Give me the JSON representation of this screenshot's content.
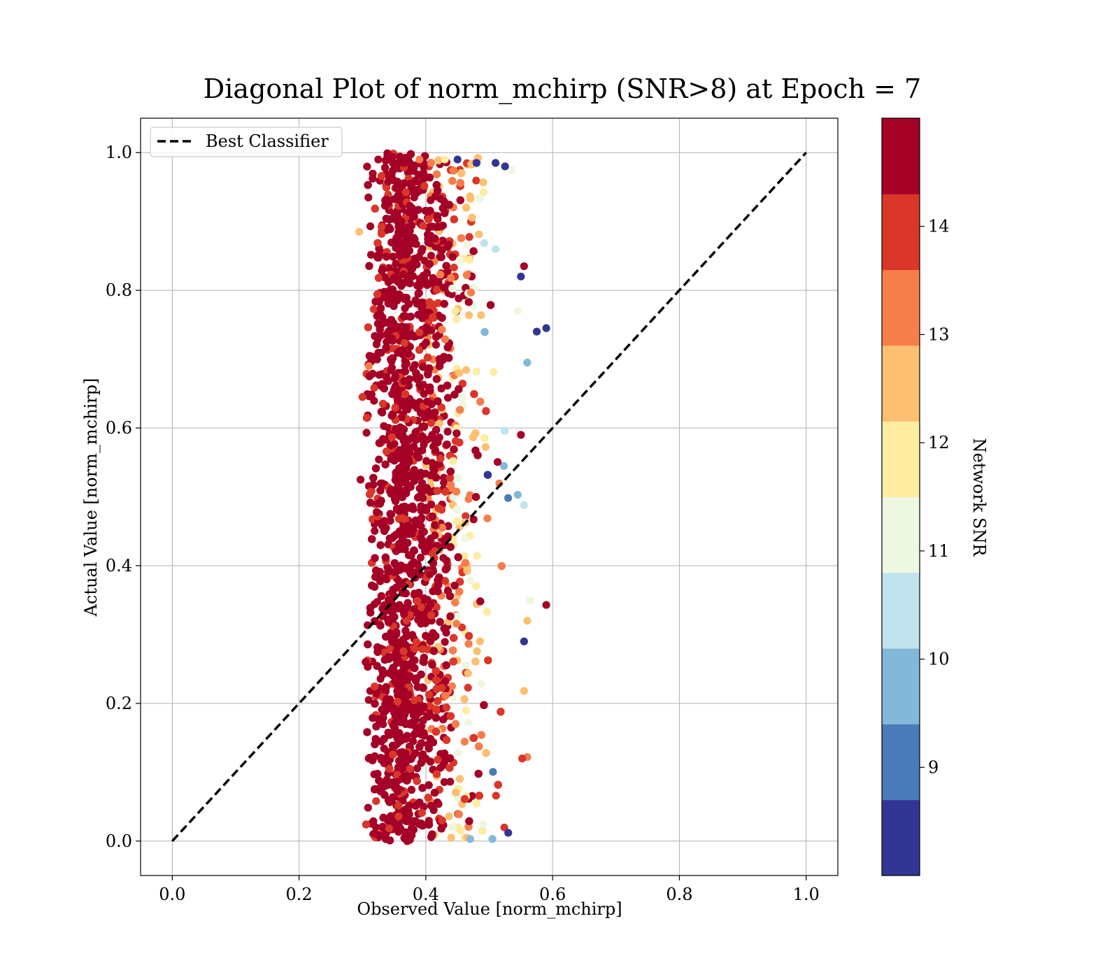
{
  "chart_data": {
    "type": "scatter",
    "title": "Diagonal Plot of norm_mchirp (SNR>8) at Epoch = 7",
    "xlabel": "Observed Value [norm_mchirp]",
    "ylabel": "Actual Value [norm_mchirp]",
    "xlim": [
      -0.05,
      1.05
    ],
    "ylim": [
      -0.05,
      1.05
    ],
    "x_ticks": [
      "0.0",
      "0.2",
      "0.4",
      "0.6",
      "0.8",
      "1.0"
    ],
    "y_ticks": [
      "0.0",
      "0.2",
      "0.4",
      "0.6",
      "0.8",
      "1.0"
    ],
    "grid": true,
    "legend": {
      "position": "upper-left",
      "entries": [
        "Best Classifier"
      ]
    },
    "reference_line": {
      "name": "Best Classifier",
      "style": "dashed",
      "color": "#000000",
      "x": [
        0.0,
        1.0
      ],
      "y": [
        0.0,
        1.0
      ]
    },
    "colorbar": {
      "label": "Network SNR",
      "range": [
        8.0,
        15.0
      ],
      "ticks": [
        "9",
        "10",
        "11",
        "12",
        "13",
        "14"
      ],
      "tick_values": [
        9,
        10,
        11,
        12,
        13,
        14
      ],
      "bins": 10,
      "colors": [
        "#313695",
        "#4a7ab7",
        "#84b8d8",
        "#c0e3ed",
        "#eef7e0",
        "#feeca0",
        "#fdbf71",
        "#f67e4b",
        "#da362a",
        "#a50026"
      ]
    },
    "points": [
      {
        "x": 0.325,
        "y": 0.99,
        "snr": 14.8
      },
      {
        "x": 0.36,
        "y": 0.99,
        "snr": 14.9
      },
      {
        "x": 0.39,
        "y": 0.99,
        "snr": 13.2
      },
      {
        "x": 0.43,
        "y": 0.99,
        "snr": 11.5
      },
      {
        "x": 0.45,
        "y": 0.99,
        "snr": 8.3
      },
      {
        "x": 0.48,
        "y": 0.985,
        "snr": 8.5
      },
      {
        "x": 0.51,
        "y": 0.985,
        "snr": 8.4
      },
      {
        "x": 0.525,
        "y": 0.98,
        "snr": 8.6
      },
      {
        "x": 0.59,
        "y": 0.745,
        "snr": 8.2
      },
      {
        "x": 0.575,
        "y": 0.74,
        "snr": 8.4
      },
      {
        "x": 0.56,
        "y": 0.695,
        "snr": 9.8
      },
      {
        "x": 0.555,
        "y": 0.835,
        "snr": 14.8
      },
      {
        "x": 0.55,
        "y": 0.82,
        "snr": 8.5
      },
      {
        "x": 0.545,
        "y": 0.77,
        "snr": 11.2
      },
      {
        "x": 0.59,
        "y": 0.343,
        "snr": 14.8
      },
      {
        "x": 0.565,
        "y": 0.35,
        "snr": 11.1
      },
      {
        "x": 0.56,
        "y": 0.32,
        "snr": 12.4
      },
      {
        "x": 0.555,
        "y": 0.29,
        "snr": 8.6
      },
      {
        "x": 0.56,
        "y": 0.122,
        "snr": 13.5
      },
      {
        "x": 0.552,
        "y": 0.12,
        "snr": 14.2
      },
      {
        "x": 0.555,
        "y": 0.218,
        "snr": 12.5
      },
      {
        "x": 0.555,
        "y": 0.488,
        "snr": 10.5
      },
      {
        "x": 0.55,
        "y": 0.59,
        "snr": 14.8
      },
      {
        "x": 0.545,
        "y": 0.503,
        "snr": 9.5
      },
      {
        "x": 0.3,
        "y": 0.645,
        "snr": 13.7
      },
      {
        "x": 0.297,
        "y": 0.525,
        "snr": 14.8
      },
      {
        "x": 0.295,
        "y": 0.885,
        "snr": 12.5
      },
      {
        "x": 0.31,
        "y": 0.69,
        "snr": 13.6
      },
      {
        "x": 0.305,
        "y": 0.26,
        "snr": 14.9
      },
      {
        "x": 0.31,
        "y": 0.12,
        "snr": 14.8
      },
      {
        "x": 0.31,
        "y": 0.205,
        "snr": 14.6
      },
      {
        "x": 0.375,
        "y": 0.002,
        "snr": 14.9
      },
      {
        "x": 0.44,
        "y": 0.005,
        "snr": 12.5
      },
      {
        "x": 0.47,
        "y": 0.003,
        "snr": 9.7
      },
      {
        "x": 0.505,
        "y": 0.003,
        "snr": 9.5
      },
      {
        "x": 0.53,
        "y": 0.012,
        "snr": 8.7
      },
      {
        "x": 0.41,
        "y": 0.01,
        "snr": 14.8
      },
      {
        "x": 0.34,
        "y": 0.03,
        "snr": 14.9
      }
    ],
    "point_cloud_note": ""
  }
}
